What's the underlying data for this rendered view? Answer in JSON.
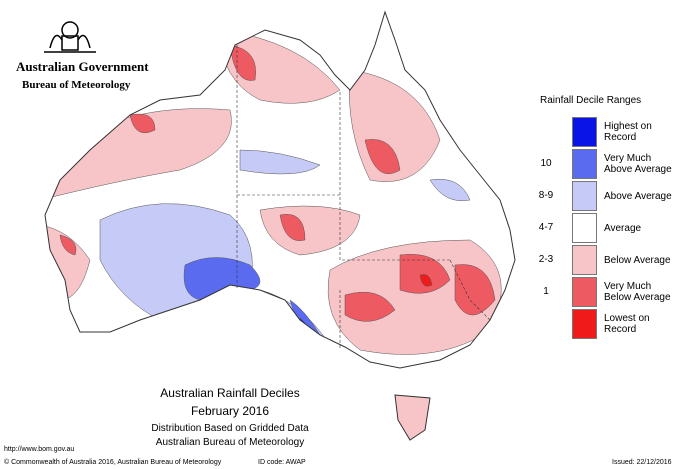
{
  "header": {
    "government": "Australian Government",
    "bureau": "Bureau of Meteorology"
  },
  "legend": {
    "title": "Rainfall Decile Ranges",
    "items": [
      {
        "label": "Highest on Record",
        "range": null,
        "color": "#0a14e6"
      },
      {
        "label": "Very Much Above Average",
        "range": "10",
        "color": "#5a6bf0"
      },
      {
        "label": "Above Average",
        "range": "8-9",
        "color": "#c6caf6"
      },
      {
        "label": "Average",
        "range": "4-7",
        "color": "#ffffff"
      },
      {
        "label": "Below Average",
        "range": "2-3",
        "color": "#f7c4c8"
      },
      {
        "label": "Very Much Below Average",
        "range": "1",
        "color": "#ee5a62"
      },
      {
        "label": "Lowest on Record",
        "range": null,
        "color": "#f01a1a"
      }
    ]
  },
  "map_title": {
    "line1": "Australian Rainfall Deciles",
    "line2": "February 2016",
    "line3": "Distribution Based on Gridded Data",
    "line4": "Australian Bureau of Meteorology"
  },
  "footer": {
    "url": "http://www.bom.gov.au",
    "copyright": "© Commonwealth of Australia 2016, Australian Bureau of Meteorology",
    "id_code": "ID code: AWAP",
    "issued": "Issued: 22/12/2016"
  }
}
